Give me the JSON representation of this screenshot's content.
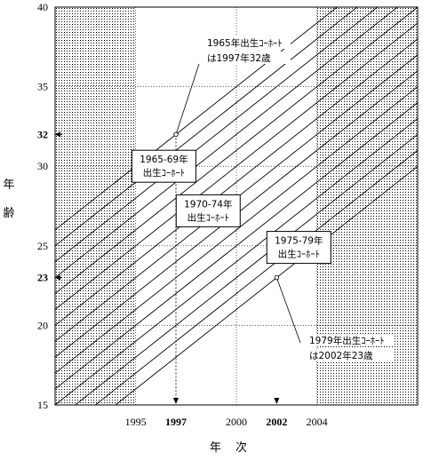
{
  "chart_data": {
    "type": "line",
    "title": "",
    "xlabel": "年 次",
    "ylabel": "年齢",
    "xlim": [
      1991,
      2009
    ],
    "ylim": [
      15,
      40
    ],
    "x_ticks": [
      {
        "value": 1995,
        "label": "1995",
        "bold": false,
        "pointer": false
      },
      {
        "value": 1997,
        "label": "1997",
        "bold": true,
        "pointer": true
      },
      {
        "value": 2000,
        "label": "2000",
        "bold": false,
        "pointer": false
      },
      {
        "value": 2002,
        "label": "2002",
        "bold": true,
        "pointer": true
      },
      {
        "value": 2004,
        "label": "2004",
        "bold": false,
        "pointer": false
      }
    ],
    "y_ticks": [
      {
        "value": 15,
        "label": "15",
        "bold": false,
        "pointer": false
      },
      {
        "value": 20,
        "label": "20",
        "bold": false,
        "pointer": false
      },
      {
        "value": 23,
        "label": "23",
        "bold": true,
        "pointer": true
      },
      {
        "value": 25,
        "label": "25",
        "bold": false,
        "pointer": false
      },
      {
        "value": 30,
        "label": "30",
        "bold": false,
        "pointer": false
      },
      {
        "value": 32,
        "label": "32",
        "bold": true,
        "pointer": true
      },
      {
        "value": 35,
        "label": "35",
        "bold": false,
        "pointer": false
      },
      {
        "value": 40,
        "label": "40",
        "bold": false,
        "pointer": false
      }
    ],
    "grid": true,
    "shaded_x_ranges": [
      [
        1991,
        1995
      ],
      [
        2004,
        2009
      ]
    ],
    "cohort_birth_years": [
      1965,
      1966,
      1967,
      1968,
      1969,
      1970,
      1971,
      1972,
      1973,
      1974,
      1975,
      1976,
      1977,
      1978,
      1979
    ],
    "highlight_points": [
      {
        "x": 1997,
        "y": 32,
        "label": "1965年出生ｺｰﾎｰﾄ\nは1997年32歳"
      },
      {
        "x": 2002,
        "y": 23,
        "label": "1979年出生ｺｰﾎｰﾄ\nは2002年23歳"
      }
    ],
    "group_labels": [
      {
        "text": "1965-69年\n出生ｺｰﾎｰﾄ",
        "x": 1996.4,
        "y": 30
      },
      {
        "text": "1970-74年\n出生ｺｰﾎｰﾄ",
        "x": 1998.6,
        "y": 27.2
      },
      {
        "text": "1975-79年\n出生ｺｰﾎｰﾄ",
        "x": 2003.1,
        "y": 24.9
      }
    ]
  }
}
